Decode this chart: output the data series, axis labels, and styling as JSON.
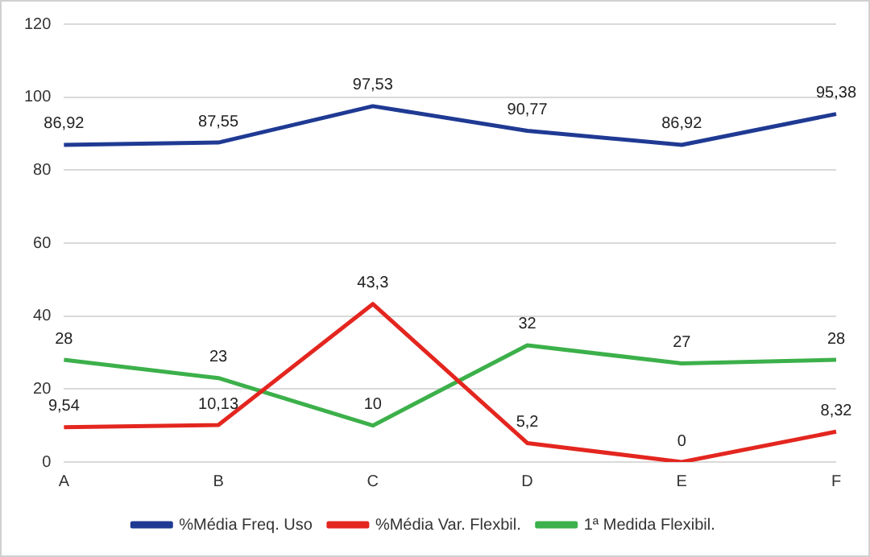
{
  "chart_data": {
    "type": "line",
    "categories": [
      "A",
      "B",
      "C",
      "D",
      "E",
      "F"
    ],
    "series": [
      {
        "name": "%Média Freq. Uso",
        "color": "#1f3a93",
        "values": [
          86.92,
          87.55,
          97.53,
          90.77,
          86.92,
          95.38
        ],
        "value_labels": [
          "86,92",
          "87,55",
          "97,53",
          "90,77",
          "86,92",
          "95,38"
        ]
      },
      {
        "name": "%Média Var. Flexbil.",
        "color": "#e3261f",
        "values": [
          9.54,
          10.13,
          43.3,
          5.2,
          0,
          8.32
        ],
        "value_labels": [
          "9,54",
          "10,13",
          "43,3",
          "5,2",
          "0",
          "8,32"
        ]
      },
      {
        "name": "1ª Medida Flexibil.",
        "color": "#3cb04a",
        "values": [
          28,
          23,
          10,
          32,
          27,
          28
        ],
        "value_labels": [
          "28",
          "23",
          "10",
          "32",
          "27",
          "28"
        ]
      }
    ],
    "ylim": [
      0,
      120
    ],
    "yticks": [
      0,
      20,
      40,
      60,
      80,
      100,
      120
    ],
    "grid": "y",
    "legend": "bottom",
    "marker": "none",
    "line_style": "solid"
  }
}
